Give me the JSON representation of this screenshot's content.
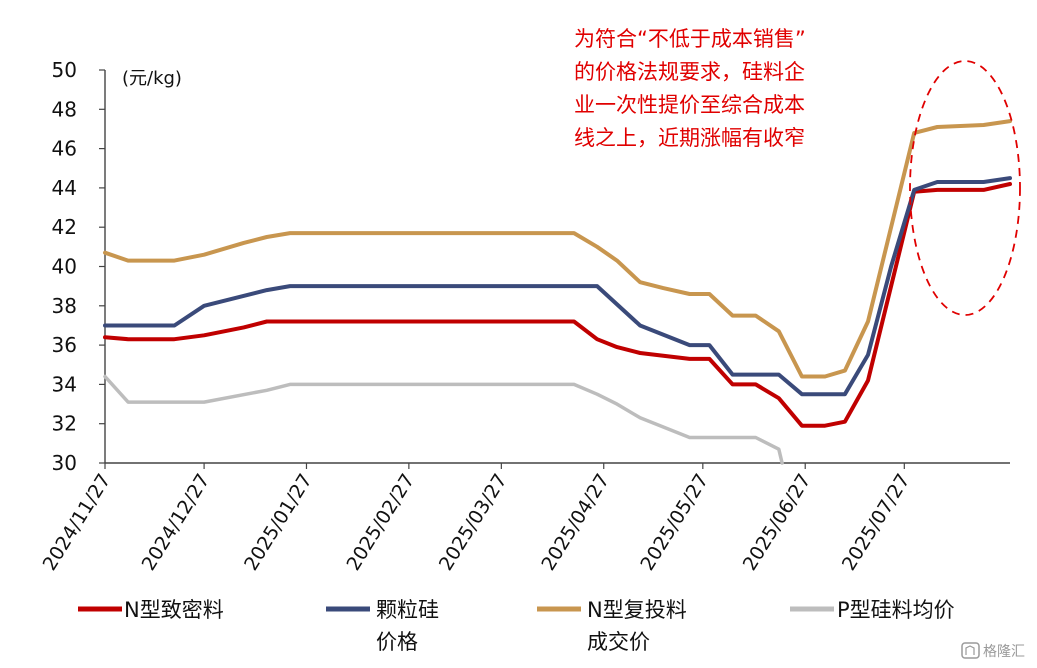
{
  "chart_data": {
    "type": "line",
    "title": "",
    "ylabel": "(元/kg)",
    "ylim": [
      30,
      50
    ],
    "yticks": [
      30,
      32,
      34,
      36,
      38,
      40,
      42,
      44,
      46,
      48,
      50
    ],
    "xlim": [
      "2024-11-27",
      "2025-08-28"
    ],
    "xticks": [
      "2024/11/27",
      "2024/12/27",
      "2025/01/27",
      "2025/02/27",
      "2025/03/27",
      "2025/04/27",
      "2025/05/27",
      "2025/06/27",
      "2025/07/27"
    ],
    "legend_position": "bottom",
    "annotation": {
      "lines": [
        "为符合“不低于成本销售”",
        "的价格法规要求，硅料企",
        "业一次性提价至综合成本",
        "线之上，近期涨幅有收窄"
      ],
      "color": "#e00000"
    },
    "series": [
      {
        "name": "N型致密料",
        "color": "#c00000",
        "points": [
          [
            "2024-11-27",
            36.4
          ],
          [
            "2024-12-04",
            36.3
          ],
          [
            "2024-12-18",
            36.3
          ],
          [
            "2024-12-27",
            36.5
          ],
          [
            "2025-01-08",
            36.9
          ],
          [
            "2025-01-15",
            37.2
          ],
          [
            "2025-04-18",
            37.2
          ],
          [
            "2025-04-25",
            36.3
          ],
          [
            "2025-05-01",
            35.9
          ],
          [
            "2025-05-08",
            35.6
          ],
          [
            "2025-05-23",
            35.3
          ],
          [
            "2025-05-29",
            35.3
          ],
          [
            "2025-06-05",
            34.0
          ],
          [
            "2025-06-12",
            34.0
          ],
          [
            "2025-06-19",
            33.3
          ],
          [
            "2025-06-26",
            31.9
          ],
          [
            "2025-07-03",
            31.9
          ],
          [
            "2025-07-09",
            32.1
          ],
          [
            "2025-07-16",
            34.2
          ],
          [
            "2025-07-23",
            39.0
          ],
          [
            "2025-07-30",
            43.8
          ],
          [
            "2025-08-06",
            43.9
          ],
          [
            "2025-08-20",
            43.9
          ],
          [
            "2025-08-28",
            44.2
          ]
        ]
      },
      {
        "name": "颗粒硅价格",
        "legend_lines": [
          "颗粒硅",
          "价格"
        ],
        "color": "#3a4a7a",
        "points": [
          [
            "2024-11-27",
            37.0
          ],
          [
            "2024-12-18",
            37.0
          ],
          [
            "2024-12-27",
            38.0
          ],
          [
            "2025-01-15",
            38.8
          ],
          [
            "2025-01-22",
            39.0
          ],
          [
            "2025-04-25",
            39.0
          ],
          [
            "2025-05-08",
            37.0
          ],
          [
            "2025-05-23",
            36.0
          ],
          [
            "2025-05-29",
            36.0
          ],
          [
            "2025-06-05",
            34.5
          ],
          [
            "2025-06-19",
            34.5
          ],
          [
            "2025-06-26",
            33.5
          ],
          [
            "2025-07-09",
            33.5
          ],
          [
            "2025-07-16",
            35.5
          ],
          [
            "2025-07-23",
            40.0
          ],
          [
            "2025-07-30",
            43.9
          ],
          [
            "2025-08-06",
            44.3
          ],
          [
            "2025-08-20",
            44.3
          ],
          [
            "2025-08-28",
            44.5
          ]
        ]
      },
      {
        "name": "N型复投料成交价",
        "legend_lines": [
          "N型复投料",
          "成交价"
        ],
        "color": "#c8964f",
        "points": [
          [
            "2024-11-27",
            40.7
          ],
          [
            "2024-12-04",
            40.3
          ],
          [
            "2024-12-18",
            40.3
          ],
          [
            "2024-12-27",
            40.6
          ],
          [
            "2025-01-08",
            41.2
          ],
          [
            "2025-01-15",
            41.5
          ],
          [
            "2025-01-22",
            41.7
          ],
          [
            "2025-04-18",
            41.7
          ],
          [
            "2025-04-25",
            41.0
          ],
          [
            "2025-05-01",
            40.3
          ],
          [
            "2025-05-08",
            39.2
          ],
          [
            "2025-05-15",
            38.9
          ],
          [
            "2025-05-23",
            38.6
          ],
          [
            "2025-05-29",
            38.6
          ],
          [
            "2025-06-05",
            37.5
          ],
          [
            "2025-06-12",
            37.5
          ],
          [
            "2025-06-19",
            36.7
          ],
          [
            "2025-06-26",
            34.4
          ],
          [
            "2025-07-03",
            34.4
          ],
          [
            "2025-07-09",
            34.7
          ],
          [
            "2025-07-16",
            37.2
          ],
          [
            "2025-07-23",
            42.0
          ],
          [
            "2025-07-30",
            46.8
          ],
          [
            "2025-08-06",
            47.1
          ],
          [
            "2025-08-20",
            47.2
          ],
          [
            "2025-08-28",
            47.4
          ]
        ]
      },
      {
        "name": "P型硅料均价",
        "color": "#bdbdbd",
        "points": [
          [
            "2024-11-27",
            34.4
          ],
          [
            "2024-12-04",
            33.1
          ],
          [
            "2024-12-27",
            33.1
          ],
          [
            "2025-01-15",
            33.7
          ],
          [
            "2025-01-22",
            34.0
          ],
          [
            "2025-04-18",
            34.0
          ],
          [
            "2025-04-25",
            33.5
          ],
          [
            "2025-05-01",
            33.0
          ],
          [
            "2025-05-08",
            32.3
          ],
          [
            "2025-05-23",
            31.3
          ],
          [
            "2025-06-12",
            31.3
          ],
          [
            "2025-06-19",
            30.7
          ],
          [
            "2025-06-20",
            30.0
          ]
        ]
      }
    ]
  },
  "watermark": {
    "icon": "building-logo-icon",
    "text": "格隆汇"
  }
}
